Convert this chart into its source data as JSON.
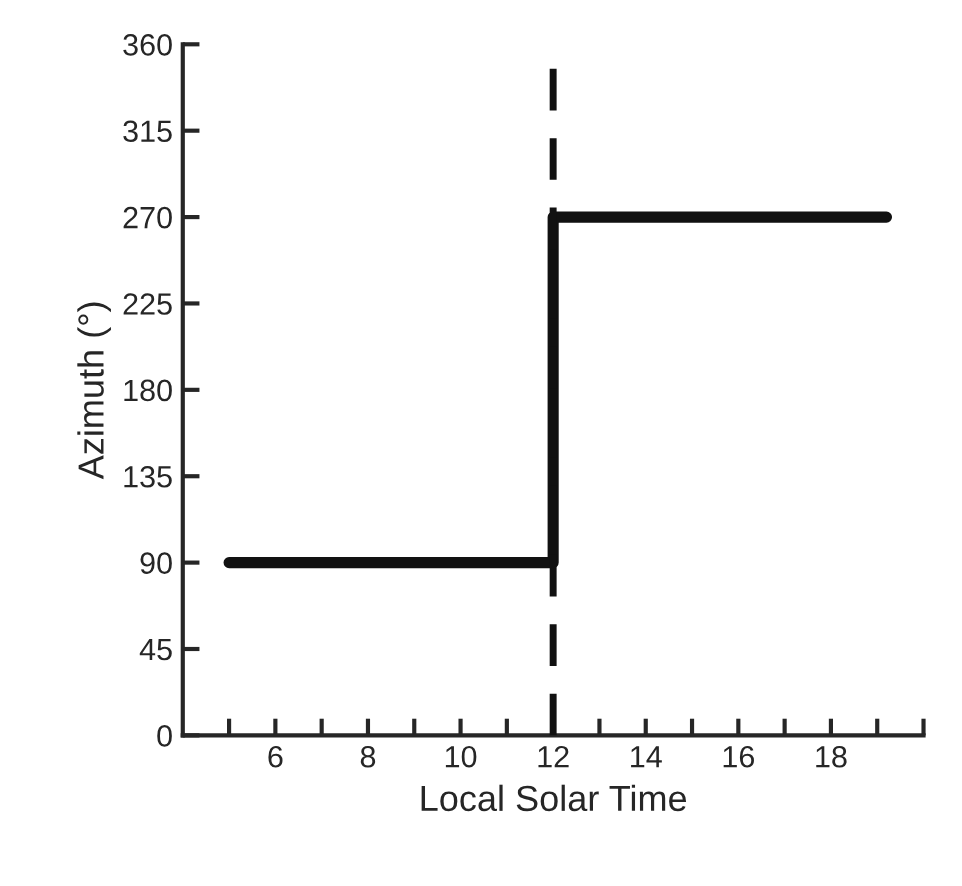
{
  "chart_data": {
    "type": "step",
    "xlabel": "Local Solar Time",
    "ylabel": "Azimuth (°)",
    "x": [
      5,
      12,
      19.2
    ],
    "series": [
      {
        "color": "#111111",
        "values": [
          90,
          270,
          270
        ]
      }
    ],
    "xlim": [
      4,
      20
    ],
    "xticks": [
      {
        "value": 5,
        "label": null
      },
      6,
      {
        "value": 7,
        "label": null
      },
      8,
      {
        "value": 9,
        "label": null
      },
      10,
      {
        "value": 11,
        "label": null
      },
      12,
      {
        "value": 13,
        "label": null
      },
      14,
      {
        "value": 15,
        "label": null
      },
      16,
      {
        "value": 17,
        "label": null
      },
      18,
      {
        "value": 19,
        "label": null
      },
      {
        "value": 20,
        "label": null
      }
    ],
    "ylim": [
      0,
      360
    ],
    "yticks": [
      0,
      45,
      90,
      135,
      180,
      225,
      270,
      315,
      360
    ],
    "ref_lines": [
      {
        "axis": "x",
        "value": 12,
        "color": "#111111",
        "line_style": "dashed"
      }
    ],
    "grid": false,
    "legend": false,
    "line_style": "solid",
    "marker": "none"
  }
}
